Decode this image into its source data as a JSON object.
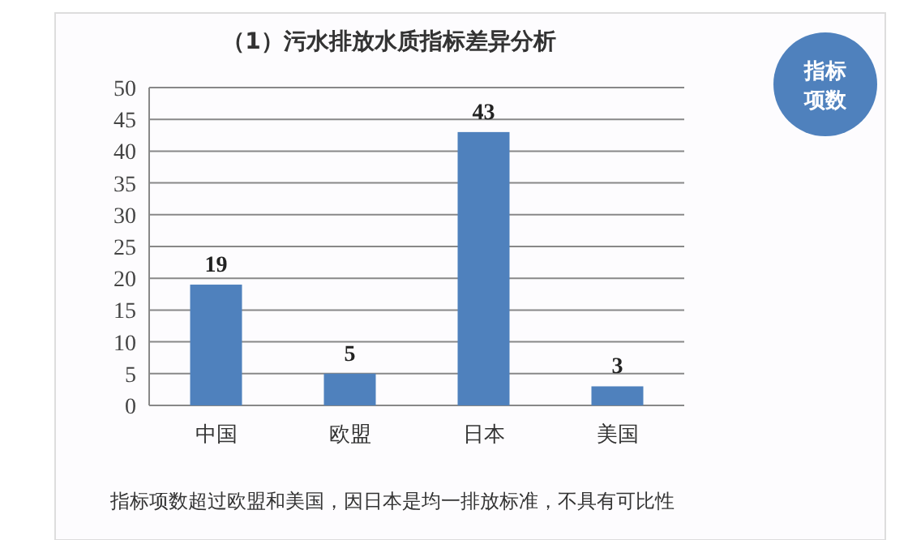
{
  "chart_data": {
    "type": "bar",
    "title": "（1）污水排放水质指标差异分析",
    "categories": [
      "中国",
      "欧盟",
      "日本",
      "美国"
    ],
    "values": [
      19,
      5,
      43,
      3
    ],
    "color": "#4f81bd",
    "ylim": [
      0,
      50
    ],
    "yticks": [
      0,
      5,
      10,
      15,
      20,
      25,
      30,
      35,
      40,
      45,
      50
    ],
    "grid": "y",
    "data_labels": true,
    "annotations": [
      "指标项数",
      "指标项数超过欧盟和美国，因日本是均一排放标准，不具有可比性"
    ]
  }
}
